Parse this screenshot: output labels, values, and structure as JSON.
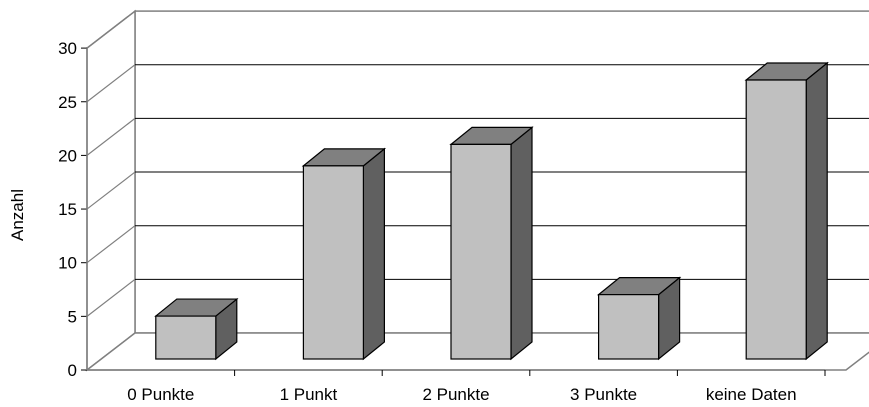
{
  "chart_data": {
    "type": "bar",
    "style": "3d-column",
    "title": "",
    "xlabel": "",
    "ylabel": "Anzahl",
    "categories": [
      "0 Punkte",
      "1 Punkt",
      "2 Punkte",
      "3 Punkte",
      "keine Daten"
    ],
    "values": [
      4,
      18,
      20,
      6,
      26
    ],
    "ylim": [
      0,
      30
    ],
    "yticks": [
      "0",
      "5",
      "10",
      "15",
      "20",
      "25",
      "30"
    ],
    "grid": true,
    "legend": "none",
    "colors": {
      "bar_front": "#c0c0c0",
      "bar_top": "#808080",
      "bar_side": "#606060",
      "gridline": "#000000",
      "axis": "#808080"
    }
  }
}
